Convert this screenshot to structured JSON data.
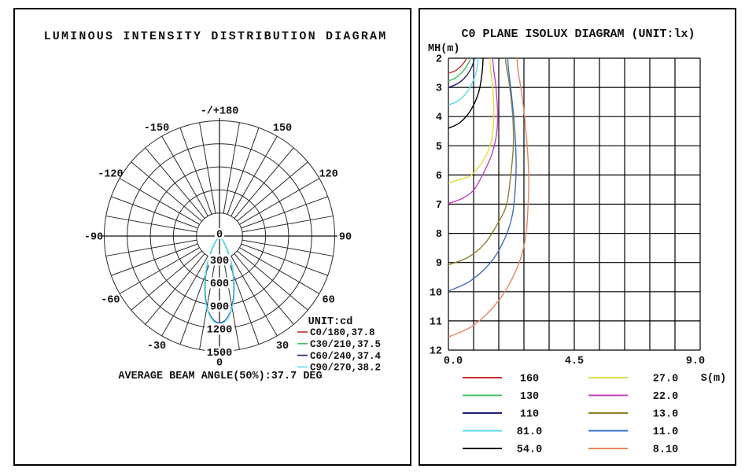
{
  "left_panel": {
    "title": "LUMINOUS INTENSITY DISTRIBUTION DIAGRAM",
    "legend_title": "UNIT:cd",
    "footer": "AVERAGE BEAM ANGLE(50%):37.7 DEG"
  },
  "right_panel": {
    "title": "C0 PLANE ISOLUX DIAGRAM (UNIT:lx)",
    "y_axis_label": "MH(m)",
    "x_axis_label": "S(m)"
  },
  "chart_data": [
    {
      "type": "line",
      "variant": "polar_intensity",
      "title": "LUMINOUS INTENSITY DISTRIBUTION DIAGRAM",
      "unit": "cd",
      "rings_cd": [
        300,
        600,
        900,
        1200,
        1500
      ],
      "radial_tick_labels": [
        "0",
        "300",
        "600",
        "900",
        "1200",
        "1500"
      ],
      "spoke_step_deg": 10,
      "angle_labels": [
        {
          "deg": 180,
          "text": "-/+180"
        },
        {
          "deg": -150,
          "text": "-150"
        },
        {
          "deg": 150,
          "text": "150"
        },
        {
          "deg": -120,
          "text": "-120"
        },
        {
          "deg": 120,
          "text": "120"
        },
        {
          "deg": -90,
          "text": "-90"
        },
        {
          "deg": 90,
          "text": "90"
        },
        {
          "deg": -60,
          "text": "-60"
        },
        {
          "deg": 60,
          "text": "60"
        },
        {
          "deg": -30,
          "text": "-30"
        },
        {
          "deg": 30,
          "text": "30"
        },
        {
          "deg": 0,
          "text": "0"
        }
      ],
      "series": [
        {
          "name": "C0/180,37.8",
          "color": "#c22e2e",
          "peak_cd": 1130,
          "beam_angle_deg": 37.8
        },
        {
          "name": "C30/210,37.5",
          "color": "#3fbf5f",
          "peak_cd": 1138,
          "beam_angle_deg": 37.5
        },
        {
          "name": "C60/240,37.4",
          "color": "#1f1f7a",
          "peak_cd": 1132,
          "beam_angle_deg": 37.4
        },
        {
          "name": "C90/270,38.2",
          "color": "#55dcef",
          "peak_cd": 1142,
          "beam_angle_deg": 38.2
        }
      ],
      "average_beam_angle_50pct_deg": 37.7
    },
    {
      "type": "line",
      "variant": "isolux_contours",
      "title": "C0 PLANE ISOLUX DIAGRAM (UNIT:lx)",
      "xlabel": "S(m)",
      "ylabel": "MH(m)",
      "xlim": [
        0,
        9
      ],
      "ylim": [
        2,
        12
      ],
      "grid_cols": 10,
      "grid_rows": 10,
      "x_tick_labels": [
        "0.0",
        "4.5",
        "9.0"
      ],
      "y_ticks": [
        "2",
        "3",
        "4",
        "5",
        "6",
        "7",
        "8",
        "9",
        "10",
        "11",
        "12"
      ],
      "contours": [
        {
          "label": "160",
          "color": "#c22e2e",
          "points": [
            [
              0,
              2.51
            ],
            [
              0.25,
              2.43
            ],
            [
              0.45,
              2.27
            ],
            [
              0.58,
              2.12
            ],
            [
              0.66,
              2.0
            ]
          ]
        },
        {
          "label": "130",
          "color": "#3fbf5f",
          "points": [
            [
              0,
              2.78
            ],
            [
              0.28,
              2.66
            ],
            [
              0.52,
              2.45
            ],
            [
              0.7,
              2.2
            ],
            [
              0.8,
              2.0
            ]
          ]
        },
        {
          "label": "110",
          "color": "#1f1f7a",
          "points": [
            [
              0,
              3.0
            ],
            [
              0.33,
              2.87
            ],
            [
              0.62,
              2.63
            ],
            [
              0.84,
              2.29
            ],
            [
              0.93,
              2.0
            ]
          ]
        },
        {
          "label": "81.0",
          "color": "#55dcef",
          "points": [
            [
              0,
              3.6
            ],
            [
              0.38,
              3.44
            ],
            [
              0.72,
              3.08
            ],
            [
              0.97,
              2.55
            ],
            [
              1.07,
              2.0
            ]
          ]
        },
        {
          "label": "54.0",
          "color": "#000000",
          "points": [
            [
              0,
              4.4
            ],
            [
              0.42,
              4.2
            ],
            [
              0.8,
              3.78
            ],
            [
              1.08,
              3.17
            ],
            [
              1.2,
              2.52
            ],
            [
              1.24,
              2.0
            ]
          ]
        },
        {
          "label": "27.0",
          "color": "#e3dd3a",
          "points": [
            [
              0,
              6.27
            ],
            [
              0.5,
              6.13
            ],
            [
              0.83,
              6.0
            ],
            [
              1.25,
              5.5
            ],
            [
              1.52,
              4.9
            ],
            [
              1.62,
              4.1
            ],
            [
              1.6,
              3.2
            ],
            [
              1.52,
              2.5
            ],
            [
              1.48,
              2.0
            ]
          ]
        },
        {
          "label": "22.0",
          "color": "#c43fc4",
          "points": [
            [
              0,
              6.98
            ],
            [
              0.5,
              6.8
            ],
            [
              0.9,
              6.52
            ],
            [
              1.22,
              6.0
            ],
            [
              1.55,
              5.3
            ],
            [
              1.72,
              4.6
            ],
            [
              1.76,
              3.9
            ],
            [
              1.7,
              3.0
            ],
            [
              1.62,
              2.4
            ],
            [
              1.58,
              2.0
            ]
          ]
        },
        {
          "label": "13.0",
          "color": "#8f8028",
          "points": [
            [
              0,
              9.08
            ],
            [
              0.7,
              8.82
            ],
            [
              1.3,
              8.35
            ],
            [
              1.8,
              7.6
            ],
            [
              2.08,
              7.0
            ],
            [
              2.23,
              6.0
            ],
            [
              2.32,
              5.0
            ],
            [
              2.3,
              4.0
            ],
            [
              2.18,
              2.9
            ],
            [
              2.06,
              2.2
            ],
            [
              2.04,
              2.0
            ]
          ]
        },
        {
          "label": "11.0",
          "color": "#3a6fc4",
          "points": [
            [
              0,
              9.98
            ],
            [
              0.8,
              9.62
            ],
            [
              1.55,
              8.95
            ],
            [
              2.05,
              8.1
            ],
            [
              2.3,
              7.3
            ],
            [
              2.4,
              6.3
            ],
            [
              2.42,
              5.5
            ],
            [
              2.36,
              4.3
            ],
            [
              2.25,
              3.2
            ],
            [
              2.15,
              2.4
            ],
            [
              2.12,
              2.0
            ]
          ]
        },
        {
          "label": "8.10",
          "color": "#e8855a",
          "points": [
            [
              0,
              11.55
            ],
            [
              0.9,
              11.15
            ],
            [
              1.8,
              10.3
            ],
            [
              2.45,
              9.2
            ],
            [
              2.75,
              8.2
            ],
            [
              2.85,
              7.0
            ],
            [
              2.87,
              6.0
            ],
            [
              2.8,
              4.8
            ],
            [
              2.65,
              3.4
            ],
            [
              2.5,
              2.5
            ],
            [
              2.45,
              2.0
            ]
          ]
        }
      ],
      "legend": {
        "left_column": [
          "160",
          "130",
          "110",
          "81.0",
          "54.0"
        ],
        "right_column": [
          "27.0",
          "22.0",
          "13.0",
          "11.0",
          "8.10"
        ]
      }
    }
  ]
}
